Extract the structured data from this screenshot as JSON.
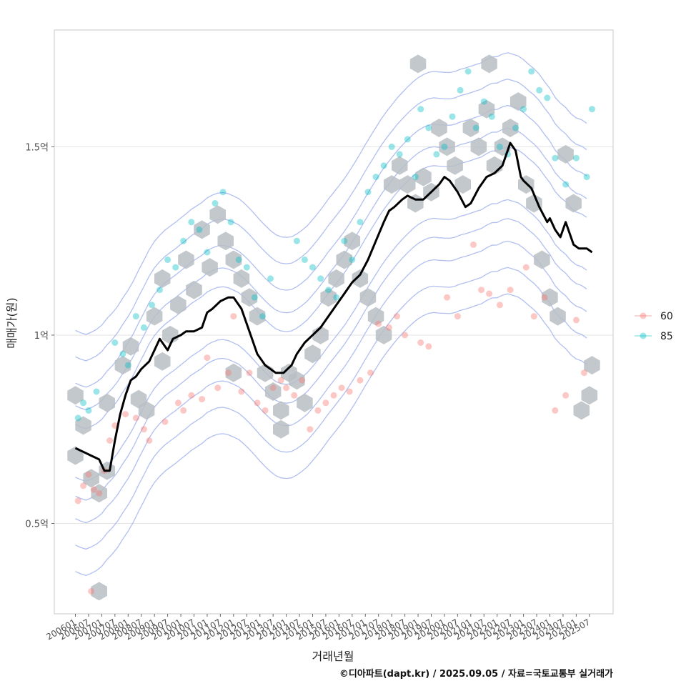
{
  "chart_data": {
    "type": "scatter",
    "xlabel": "거래년월",
    "ylabel": "매매가(원)",
    "caption": "©디아파트(dapt.kr) / 2025.09.05 / 자료=국토교통부 실거래가",
    "x_ticks": [
      "200601",
      "200607",
      "200701",
      "200707",
      "200801",
      "200807",
      "200901",
      "200907",
      "201001",
      "201007",
      "201101",
      "201107",
      "201201",
      "201207",
      "201301",
      "201307",
      "201401",
      "201407",
      "201501",
      "201507",
      "201601",
      "201607",
      "201701",
      "201707",
      "201801",
      "201807",
      "201901",
      "201907",
      "202001",
      "202007",
      "202101",
      "202107",
      "202201",
      "202207",
      "202301",
      "202307",
      "202401",
      "202407",
      "202501",
      "202507"
    ],
    "y_ticks": [
      {
        "value": 0.5,
        "label": "0.5억"
      },
      {
        "value": 1.0,
        "label": "1억"
      },
      {
        "value": 1.5,
        "label": "1.5억"
      }
    ],
    "ylim": [
      0.26,
      1.81
    ],
    "xlim": [
      2005.2,
      2026.4
    ],
    "grid": true,
    "legend": {
      "position": "right",
      "entries": [
        {
          "name": "60",
          "color": "#f8766d"
        },
        {
          "name": "85",
          "color": "#00bfc4"
        }
      ]
    },
    "hexbin_color": "#b9bec4",
    "contour_color": "#a3b4ee",
    "trend_line": {
      "name": "",
      "color": "#000000",
      "x": [
        2006.0,
        2006.3,
        2006.6,
        2006.9,
        2007.1,
        2007.3,
        2007.5,
        2007.7,
        2007.9,
        2008.0,
        2008.1,
        2008.3,
        2008.5,
        2008.8,
        2009.0,
        2009.2,
        2009.5,
        2009.7,
        2010.0,
        2010.2,
        2010.5,
        2010.8,
        2011.0,
        2011.2,
        2011.5,
        2011.8,
        2012.0,
        2012.3,
        2012.6,
        2012.9,
        2013.2,
        2013.6,
        2013.9,
        2014.2,
        2014.4,
        2014.7,
        2015.0,
        2015.3,
        2015.6,
        2015.9,
        2016.2,
        2016.5,
        2016.8,
        2017.1,
        2017.4,
        2017.7,
        2017.9,
        2018.1,
        2018.4,
        2018.6,
        2018.9,
        2019.2,
        2019.5,
        2019.8,
        2020.0,
        2020.2,
        2020.5,
        2020.8,
        2021.0,
        2021.3,
        2021.6,
        2021.9,
        2022.2,
        2022.5,
        2022.7,
        2022.9,
        2023.0,
        2023.3,
        2023.6,
        2023.9,
        2024.0,
        2024.2,
        2024.4,
        2024.6,
        2024.9,
        2025.1,
        2025.4,
        2025.6
      ],
      "y": [
        0.7,
        0.69,
        0.68,
        0.67,
        0.64,
        0.64,
        0.72,
        0.79,
        0.84,
        0.86,
        0.88,
        0.89,
        0.91,
        0.93,
        0.96,
        0.99,
        0.96,
        0.99,
        1.0,
        1.01,
        1.01,
        1.02,
        1.06,
        1.07,
        1.09,
        1.1,
        1.1,
        1.07,
        1.01,
        0.95,
        0.92,
        0.9,
        0.9,
        0.92,
        0.95,
        0.98,
        1.0,
        1.02,
        1.05,
        1.08,
        1.11,
        1.14,
        1.16,
        1.2,
        1.25,
        1.3,
        1.33,
        1.34,
        1.36,
        1.37,
        1.36,
        1.36,
        1.38,
        1.4,
        1.42,
        1.41,
        1.38,
        1.34,
        1.35,
        1.39,
        1.42,
        1.43,
        1.45,
        1.51,
        1.49,
        1.42,
        1.41,
        1.39,
        1.34,
        1.3,
        1.31,
        1.28,
        1.26,
        1.3,
        1.24,
        1.23,
        1.23,
        1.22
      ]
    },
    "series": [
      {
        "name": "60",
        "color": "#f8766d",
        "x": [
          2006.1,
          2006.3,
          2006.5,
          2006.7,
          2006.9,
          2007.1,
          2007.3,
          2007.5,
          2007.9,
          2008.3,
          2008.6,
          2008.8,
          2009.4,
          2009.9,
          2010.1,
          2010.4,
          2010.8,
          2011.0,
          2011.4,
          2011.8,
          2012.0,
          2012.3,
          2012.6,
          2012.9,
          2013.2,
          2013.5,
          2013.8,
          2014.0,
          2014.3,
          2014.6,
          2014.9,
          2015.2,
          2015.5,
          2015.8,
          2016.1,
          2016.4,
          2016.8,
          2017.2,
          2017.5,
          2017.9,
          2018.2,
          2018.5,
          2019.1,
          2019.4,
          2020.1,
          2020.5,
          2021.1,
          2021.4,
          2021.7,
          2022.1,
          2022.5,
          2023.1,
          2023.4,
          2023.8,
          2024.2,
          2024.6,
          2025.0,
          2025.3,
          2006.6
        ],
        "y": [
          0.56,
          0.6,
          0.63,
          0.59,
          0.58,
          0.64,
          0.72,
          0.76,
          0.79,
          0.78,
          0.75,
          0.72,
          0.77,
          0.82,
          0.8,
          0.84,
          0.83,
          0.94,
          0.86,
          0.9,
          1.05,
          0.85,
          0.9,
          0.82,
          0.8,
          0.86,
          0.88,
          0.86,
          0.84,
          0.88,
          0.75,
          0.8,
          0.82,
          0.84,
          0.86,
          0.85,
          0.88,
          0.9,
          1.03,
          1.02,
          1.05,
          1.0,
          0.98,
          0.97,
          1.1,
          1.05,
          1.24,
          1.12,
          1.11,
          1.08,
          1.12,
          1.18,
          1.05,
          1.1,
          0.8,
          0.84,
          1.04,
          0.9,
          0.32
        ]
      },
      {
        "name": "85",
        "color": "#00bfc4",
        "x": [
          2006.1,
          2006.3,
          2006.5,
          2006.8,
          2007.5,
          2007.8,
          2008.0,
          2008.3,
          2008.6,
          2008.9,
          2009.2,
          2009.5,
          2009.8,
          2010.1,
          2010.4,
          2010.7,
          2011.0,
          2011.3,
          2011.6,
          2011.9,
          2012.2,
          2012.5,
          2012.8,
          2013.1,
          2013.4,
          2014.4,
          2014.7,
          2015.0,
          2015.3,
          2015.6,
          2015.9,
          2016.2,
          2016.5,
          2016.8,
          2017.1,
          2017.4,
          2017.7,
          2018.0,
          2018.3,
          2018.6,
          2018.9,
          2019.1,
          2019.4,
          2019.7,
          2020.0,
          2020.3,
          2020.6,
          2020.9,
          2021.2,
          2021.5,
          2021.8,
          2022.1,
          2022.4,
          2022.7,
          2023.0,
          2023.3,
          2023.6,
          2023.9,
          2024.2,
          2024.6,
          2025.0,
          2025.4,
          2025.6
        ],
        "y": [
          0.78,
          0.82,
          0.8,
          0.85,
          0.98,
          0.95,
          0.92,
          1.05,
          1.02,
          1.08,
          1.12,
          1.2,
          1.18,
          1.25,
          1.3,
          1.28,
          1.22,
          1.35,
          1.38,
          1.3,
          1.2,
          1.18,
          1.1,
          1.05,
          1.15,
          1.25,
          1.2,
          1.18,
          1.15,
          1.12,
          1.1,
          1.25,
          1.2,
          1.3,
          1.38,
          1.42,
          1.45,
          1.5,
          1.48,
          1.52,
          1.42,
          1.6,
          1.55,
          1.48,
          1.5,
          1.58,
          1.65,
          1.7,
          1.55,
          1.62,
          1.58,
          1.5,
          1.48,
          1.55,
          1.6,
          1.7,
          1.65,
          1.63,
          1.47,
          1.4,
          1.47,
          1.42,
          1.6
        ]
      }
    ],
    "hexbins": {
      "x": [
        2006.0,
        2006.0,
        2006.3,
        2006.6,
        2006.9,
        2007.2,
        2007.2,
        2007.8,
        2008.1,
        2008.4,
        2008.7,
        2009.0,
        2009.3,
        2009.3,
        2009.6,
        2009.9,
        2010.2,
        2010.5,
        2010.8,
        2011.1,
        2011.4,
        2011.7,
        2012.0,
        2012.3,
        2012.6,
        2012.9,
        2013.2,
        2013.5,
        2013.8,
        2014.1,
        2014.4,
        2014.7,
        2015.0,
        2015.3,
        2015.6,
        2015.9,
        2016.2,
        2016.5,
        2016.8,
        2017.1,
        2017.4,
        2017.7,
        2018.0,
        2018.3,
        2018.6,
        2018.9,
        2019.2,
        2019.5,
        2019.8,
        2020.1,
        2020.4,
        2020.7,
        2021.0,
        2021.3,
        2021.6,
        2021.9,
        2022.2,
        2022.5,
        2022.8,
        2023.1,
        2023.4,
        2023.7,
        2024.0,
        2024.3,
        2024.6,
        2024.9,
        2025.2,
        2025.5,
        2025.6,
        2006.9,
        2012.0,
        2013.8,
        2019.0,
        2021.7
      ],
      "y": [
        0.68,
        0.84,
        0.76,
        0.62,
        0.58,
        0.64,
        0.82,
        0.92,
        0.97,
        0.83,
        0.8,
        1.05,
        1.15,
        0.93,
        1.0,
        1.08,
        1.2,
        1.12,
        1.28,
        1.18,
        1.32,
        1.25,
        1.2,
        1.15,
        1.1,
        1.05,
        0.9,
        0.85,
        0.8,
        0.9,
        0.88,
        0.82,
        0.95,
        1.0,
        1.1,
        1.15,
        1.2,
        1.25,
        1.15,
        1.1,
        1.05,
        1.0,
        1.4,
        1.45,
        1.4,
        1.35,
        1.42,
        1.38,
        1.55,
        1.5,
        1.45,
        1.4,
        1.55,
        1.5,
        1.6,
        1.45,
        1.5,
        1.55,
        1.62,
        1.4,
        1.35,
        1.2,
        1.1,
        1.05,
        1.48,
        1.35,
        0.8,
        0.84,
        0.92,
        0.32,
        0.9,
        0.75,
        1.72,
        1.72
      ]
    }
  }
}
